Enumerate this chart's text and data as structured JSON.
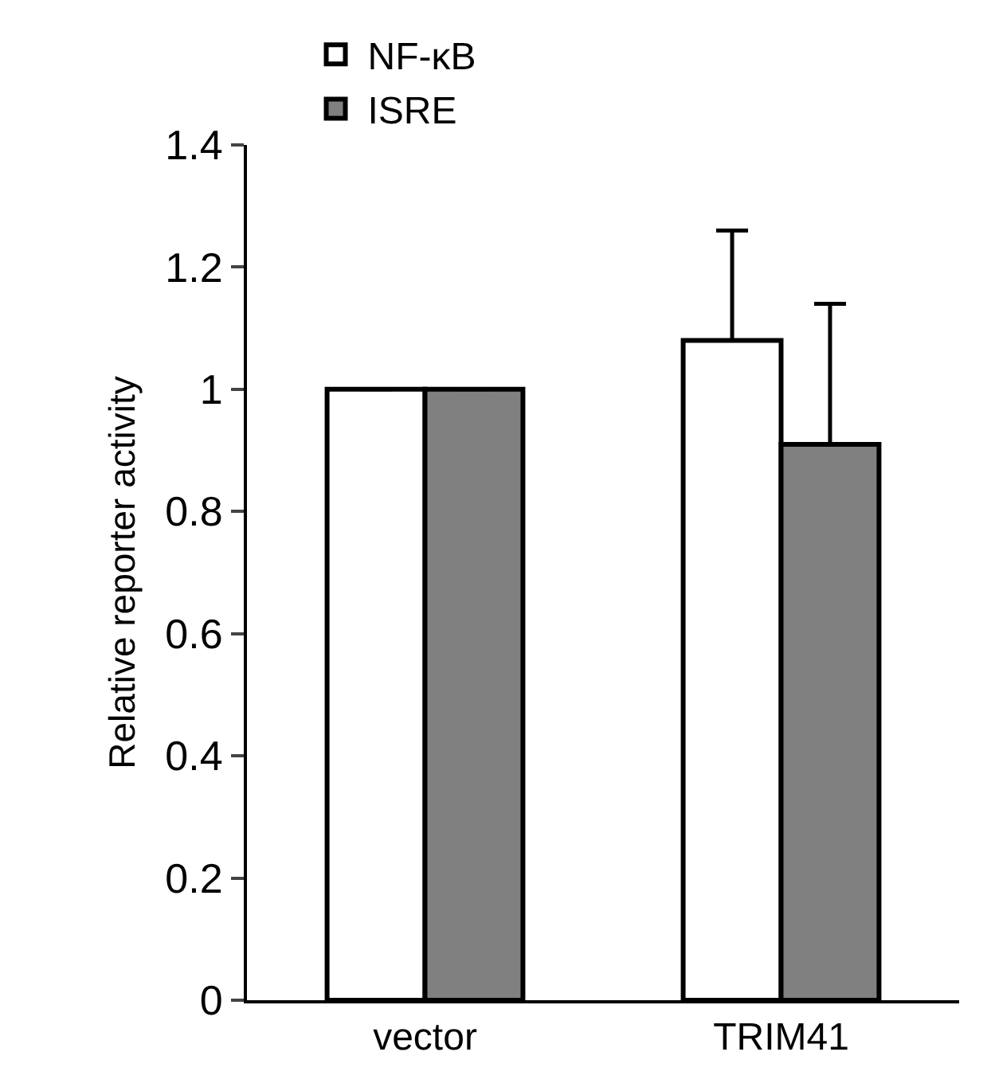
{
  "chart_data": {
    "type": "bar",
    "ylabel": "Relative reporter activity",
    "categories": [
      "vector",
      "TRIM41"
    ],
    "series": [
      {
        "name": "NF-κB",
        "color": "#ffffff",
        "values": [
          1.0,
          1.08
        ],
        "errors": [
          null,
          [
            1.08,
            1.26
          ]
        ]
      },
      {
        "name": "ISRE",
        "color": "#808080",
        "values": [
          1.0,
          0.91
        ],
        "errors": [
          null,
          [
            0.91,
            1.14
          ]
        ]
      }
    ],
    "ylim": [
      0,
      1.4
    ],
    "yticks": [
      0,
      0.2,
      0.4,
      0.6,
      0.8,
      1,
      1.2,
      1.4
    ],
    "legend": "top left"
  }
}
